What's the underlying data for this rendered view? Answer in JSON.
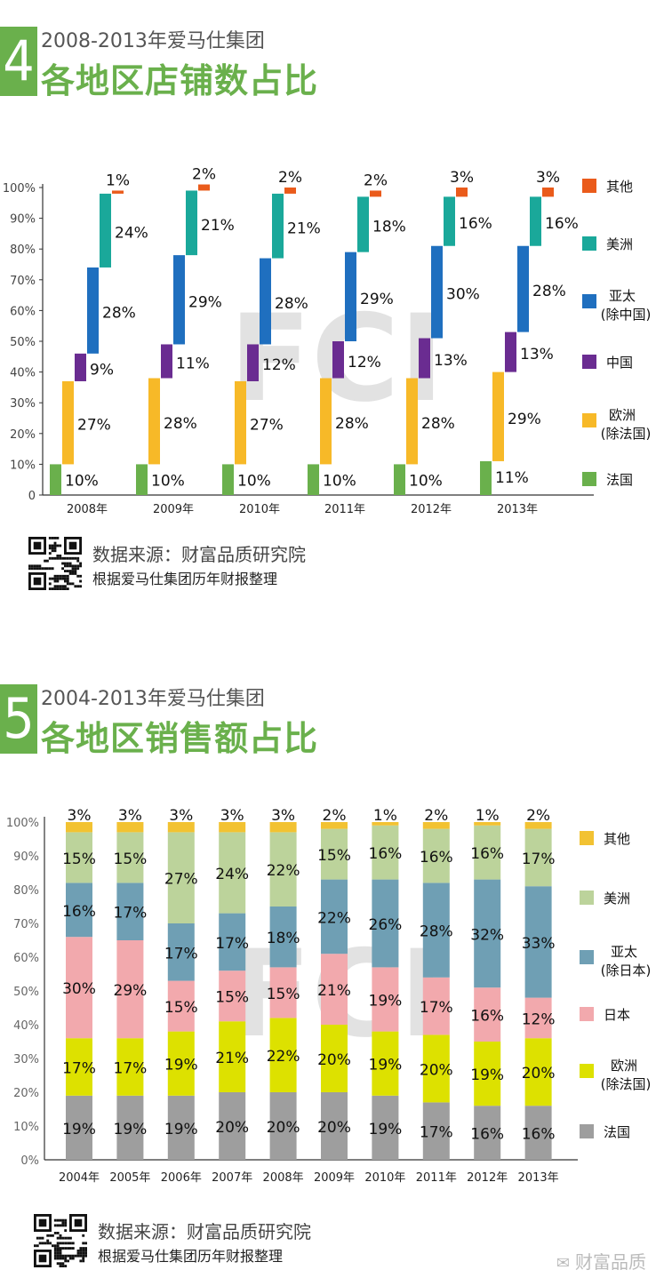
{
  "sections": [
    {
      "number": "4",
      "subtitle": "2008-2013年爱马仕集团",
      "title": "各地区店铺数占比",
      "source_title": "数据来源：财富品质研究院",
      "source_sub": "根据爱马仕集团历年财报整理"
    },
    {
      "number": "5",
      "subtitle": "2004-2013年爱马仕集团",
      "title": "各地区销售额占比",
      "source_title": "数据来源：财富品质研究院",
      "source_sub": "根据爱马仕集团历年财报整理"
    }
  ],
  "watermark_text": "FCI",
  "wechat_label": "财富品质",
  "colors": {
    "brand_green": "#6ab04c"
  },
  "chart_data": [
    {
      "type": "waterfall",
      "title": "各地区店铺数占比",
      "categories": [
        "2008年",
        "2009年",
        "2010年",
        "2011年",
        "2012年",
        "2013年"
      ],
      "ylim": [
        0,
        100
      ],
      "yticks": [
        "0",
        "10%",
        "20%",
        "30%",
        "40%",
        "50%",
        "60%",
        "70%",
        "80%",
        "90%",
        "100%"
      ],
      "series": [
        {
          "name": "法国",
          "color": "#6ab04c",
          "values": [
            10,
            10,
            10,
            10,
            10,
            11
          ],
          "labels": [
            "10%",
            "10%",
            "10%",
            "10%",
            "10%",
            "11%"
          ]
        },
        {
          "name": "欧洲(除法国)",
          "color": "#f7b928",
          "values": [
            27,
            28,
            27,
            28,
            28,
            29
          ],
          "labels": [
            "27%",
            "28%",
            "27%",
            "28%",
            "28%",
            "29%"
          ]
        },
        {
          "name": "中国",
          "color": "#6a2c91",
          "values": [
            9,
            11,
            12,
            12,
            13,
            13
          ],
          "labels": [
            "9%",
            "11%",
            "12%",
            "12%",
            "13%",
            "13%"
          ]
        },
        {
          "name": "亚太(除中国)",
          "color": "#1f6fbf",
          "values": [
            28,
            29,
            28,
            29,
            30,
            28
          ],
          "labels": [
            "28%",
            "29%",
            "28%",
            "29%",
            "30%",
            "28%"
          ]
        },
        {
          "name": "美洲",
          "color": "#1aa89a",
          "values": [
            24,
            21,
            21,
            18,
            16,
            16
          ],
          "labels": [
            "24%",
            "21%",
            "21%",
            "18%",
            "16%",
            "16%"
          ]
        },
        {
          "name": "其他",
          "color": "#ea5b1b",
          "values": [
            1,
            2,
            2,
            2,
            3,
            3
          ],
          "labels": [
            "1%",
            "2%",
            "2%",
            "2%",
            "3%",
            "3%"
          ]
        }
      ],
      "legend": [
        {
          "line1": "其他",
          "line2": ""
        },
        {
          "line1": "美洲",
          "line2": ""
        },
        {
          "line1": "亚太",
          "line2": "(除中国)"
        },
        {
          "line1": "中国",
          "line2": ""
        },
        {
          "line1": "欧洲",
          "line2": "(除法国)"
        },
        {
          "line1": "法国",
          "line2": ""
        }
      ]
    },
    {
      "type": "stacked-bar",
      "title": "各地区销售额占比",
      "categories": [
        "2004年",
        "2005年",
        "2006年",
        "2007年",
        "2008年",
        "2009年",
        "2010年",
        "2011年",
        "2012年",
        "2013年"
      ],
      "ylim": [
        0,
        100
      ],
      "yticks": [
        "0%",
        "10%",
        "20%",
        "30%",
        "40%",
        "50%",
        "60%",
        "70%",
        "80%",
        "90%",
        "100%"
      ],
      "series": [
        {
          "name": "法国",
          "color": "#9e9e9e",
          "values": [
            19,
            19,
            19,
            20,
            20,
            20,
            19,
            17,
            16,
            16
          ],
          "labels": [
            "19%",
            "19%",
            "19%",
            "20%",
            "20%",
            "20%",
            "19%",
            "17%",
            "16%",
            "16%"
          ]
        },
        {
          "name": "欧洲(除法国)",
          "color": "#dde100",
          "values": [
            17,
            17,
            19,
            21,
            22,
            20,
            19,
            20,
            19,
            20
          ],
          "labels": [
            "17%",
            "17%",
            "19%",
            "21%",
            "22%",
            "20%",
            "19%",
            "20%",
            "19%",
            "20%"
          ]
        },
        {
          "name": "日本",
          "color": "#f2a9ad",
          "values": [
            30,
            29,
            15,
            15,
            15,
            21,
            19,
            17,
            16,
            12
          ],
          "labels": [
            "30%",
            "29%",
            "15%",
            "15%",
            "15%",
            "21%",
            "19%",
            "17%",
            "16%",
            "12%"
          ]
        },
        {
          "name": "亚太(除日本)",
          "color": "#6f9fb4",
          "values": [
            16,
            17,
            17,
            17,
            18,
            22,
            26,
            28,
            32,
            33
          ],
          "labels": [
            "16%",
            "17%",
            "17%",
            "17%",
            "18%",
            "22%",
            "26%",
            "28%",
            "32%",
            "33%"
          ]
        },
        {
          "name": "美洲",
          "color": "#bcd39b",
          "values": [
            15,
            15,
            27,
            24,
            22,
            15,
            16,
            16,
            16,
            17
          ],
          "labels": [
            "15%",
            "15%",
            "27%",
            "24%",
            "22%",
            "15%",
            "16%",
            "16%",
            "16%",
            "17%"
          ]
        },
        {
          "name": "其他",
          "color": "#f2c232",
          "values": [
            3,
            3,
            3,
            3,
            3,
            2,
            1,
            2,
            1,
            2
          ],
          "labels": [
            "3%",
            "3%",
            "3%",
            "3%",
            "3%",
            "2%",
            "1%",
            "2%",
            "1%",
            "2%"
          ]
        }
      ],
      "legend": [
        {
          "line1": "其他",
          "line2": ""
        },
        {
          "line1": "美洲",
          "line2": ""
        },
        {
          "line1": "亚太",
          "line2": "(除日本)"
        },
        {
          "line1": "日本",
          "line2": ""
        },
        {
          "line1": "欧洲",
          "line2": "(除法国)"
        },
        {
          "line1": "法国",
          "line2": ""
        }
      ]
    }
  ]
}
